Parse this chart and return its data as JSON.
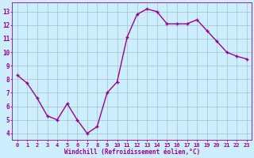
{
  "x": [
    0,
    1,
    2,
    3,
    4,
    5,
    6,
    7,
    8,
    9,
    10,
    11,
    12,
    13,
    14,
    15,
    16,
    17,
    18,
    19,
    20,
    21,
    22,
    23
  ],
  "y": [
    8.3,
    7.7,
    6.6,
    5.3,
    5.0,
    6.2,
    5.0,
    4.0,
    4.5,
    7.0,
    7.8,
    11.1,
    12.8,
    13.2,
    13.0,
    12.1,
    12.1,
    12.1,
    12.4,
    11.6,
    10.8,
    10.0,
    9.7,
    9.5
  ],
  "line_color": "#990099",
  "marker": "+",
  "marker_size": 3.5,
  "marker_lw": 1.0,
  "bg_color": "#cceeff",
  "grid_color": "#aacccc",
  "xlabel": "Windchill (Refroidissement éolien,°C)",
  "xlabel_color": "#990099",
  "ylabel_ticks": [
    4,
    5,
    6,
    7,
    8,
    9,
    10,
    11,
    12,
    13
  ],
  "xtick_labels": [
    "0",
    "1",
    "2",
    "3",
    "4",
    "5",
    "6",
    "7",
    "8",
    "9",
    "10",
    "11",
    "12",
    "13",
    "14",
    "15",
    "16",
    "17",
    "18",
    "19",
    "20",
    "21",
    "22",
    "23"
  ],
  "xlim": [
    -0.5,
    23.5
  ],
  "ylim": [
    3.5,
    13.7
  ],
  "tick_label_color": "#990099",
  "axis_color": "#990099",
  "line_width": 1.0
}
